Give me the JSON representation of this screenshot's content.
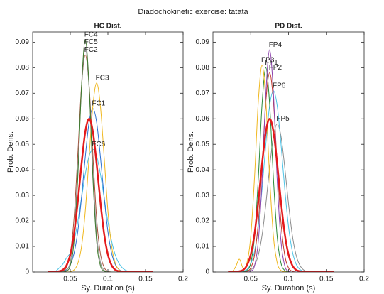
{
  "title": "Diadochokinetic exercise: tatata",
  "chart_data": [
    {
      "type": "line",
      "title": "HC Dist.",
      "xlabel": "Sy. Duration (s)",
      "ylabel": "Prob. Dens.",
      "xlim": [
        0,
        0.2
      ],
      "ylim": [
        0,
        0.094
      ],
      "xticks": [
        0.05,
        0.1,
        0.15,
        0.2
      ],
      "yticks": [
        0,
        0.01,
        0.02,
        0.03,
        0.04,
        0.05,
        0.06,
        0.07,
        0.08,
        0.09
      ],
      "x": [
        0.02,
        0.025,
        0.03,
        0.035,
        0.04,
        0.045,
        0.05,
        0.055,
        0.06,
        0.065,
        0.07,
        0.075,
        0.08,
        0.085,
        0.09,
        0.095,
        0.1,
        0.105,
        0.11,
        0.115,
        0.12,
        0.125,
        0.13,
        0.135,
        0.14,
        0.145,
        0.15,
        0.155,
        0.16
      ],
      "series": [
        {
          "name": "FC6",
          "color": "#4cc3e6",
          "values": [
            0,
            0,
            0.0002,
            0.0015,
            0.003,
            0.0055,
            0.0075,
            0.012,
            0.0197,
            0.0291,
            0.0384,
            0.0454,
            0.048,
            0.0454,
            0.0384,
            0.0291,
            0.0197,
            0.012,
            0.0065,
            0.0032,
            0.0014,
            0.0005,
            0.0002,
            0,
            0,
            0,
            0,
            0,
            0
          ]
        },
        {
          "name": "FC1",
          "color": "#2a6fd0",
          "values": [
            0,
            0,
            0,
            0.0001,
            0.0003,
            0.0009,
            0.0028,
            0.0073,
            0.0159,
            0.0293,
            0.0452,
            0.0587,
            0.064,
            0.0587,
            0.0452,
            0.0293,
            0.0159,
            0.0073,
            0.0028,
            0.0009,
            0.0003,
            0.0001,
            0,
            0,
            0,
            0,
            0,
            0,
            0
          ]
        },
        {
          "name": "FC3",
          "color": "#f0b820",
          "values": [
            0,
            0,
            0,
            0,
            0,
            0,
            0.0001,
            0.0008,
            0.0033,
            0.01,
            0.024,
            0.045,
            0.065,
            0.074,
            0.065,
            0.045,
            0.024,
            0.01,
            0.0033,
            0.0008,
            0.0001,
            0,
            0,
            0,
            0,
            0,
            0,
            0,
            0
          ]
        },
        {
          "name": "FC2",
          "color": "#a5503a",
          "values": [
            0,
            0,
            0,
            0,
            0.0003,
            0.0018,
            0.0072,
            0.021,
            0.046,
            0.073,
            0.085,
            0.073,
            0.046,
            0.021,
            0.0072,
            0.0018,
            0.0003,
            0,
            0,
            0,
            0,
            0,
            0,
            0,
            0,
            0,
            0,
            0,
            0
          ]
        },
        {
          "name": "FC5",
          "color": "#8c8c8c",
          "values": [
            0,
            0,
            0,
            0,
            0.0001,
            0.0007,
            0.0039,
            0.015,
            0.04,
            0.072,
            0.088,
            0.072,
            0.04,
            0.015,
            0.0039,
            0.0007,
            0.0001,
            0,
            0,
            0,
            0,
            0,
            0,
            0,
            0,
            0,
            0,
            0,
            0
          ]
        },
        {
          "name": "FC4",
          "color": "#3d7a2c",
          "values": [
            0,
            0,
            0,
            0,
            0,
            0.0004,
            0.0025,
            0.012,
            0.037,
            0.073,
            0.091,
            0.073,
            0.037,
            0.012,
            0.0025,
            0.0004,
            0,
            0,
            0,
            0,
            0,
            0,
            0,
            0,
            0,
            0,
            0,
            0,
            0
          ]
        },
        {
          "color": "#e41a1c",
          "linewidth": 2.5,
          "values": [
            0,
            0,
            0.0001,
            0.0003,
            0.0008,
            0.0026,
            0.0068,
            0.0149,
            0.0275,
            0.0424,
            0.055,
            0.06,
            0.055,
            0.0424,
            0.0275,
            0.0149,
            0.0068,
            0.0026,
            0.0008,
            0.0003,
            0.0001,
            0,
            0,
            0,
            0,
            0,
            0,
            0,
            0
          ]
        }
      ]
    },
    {
      "type": "line",
      "title": "PD Dist.",
      "xlabel": "Sy. Duration (s)",
      "ylabel": "Prob. Dens.",
      "xlim": [
        0,
        0.2
      ],
      "ylim": [
        0,
        0.094
      ],
      "xticks": [
        0.05,
        0.1,
        0.15,
        0.2
      ],
      "yticks": [
        0,
        0.01,
        0.02,
        0.03,
        0.04,
        0.05,
        0.06,
        0.07,
        0.08,
        0.09
      ],
      "x": [
        0.02,
        0.025,
        0.03,
        0.035,
        0.04,
        0.045,
        0.05,
        0.055,
        0.06,
        0.065,
        0.07,
        0.075,
        0.08,
        0.085,
        0.09,
        0.095,
        0.1,
        0.105,
        0.11,
        0.115,
        0.12,
        0.125,
        0.13,
        0.135,
        0.14,
        0.145,
        0.15,
        0.155,
        0.16
      ],
      "series": [
        {
          "name": "FP5",
          "color": "#8c8c8c",
          "values": [
            0,
            0,
            0,
            0,
            0.0001,
            0.0002,
            0.0008,
            0.0026,
            0.0066,
            0.0144,
            0.0266,
            0.041,
            0.0532,
            0.058,
            0.0532,
            0.041,
            0.0266,
            0.0144,
            0.0066,
            0.0026,
            0.0008,
            0.0002,
            0.0001,
            0,
            0,
            0,
            0,
            0,
            0
          ]
        },
        {
          "name": "FP6",
          "color": "#4cc3e6",
          "values": [
            0,
            0,
            0,
            0.0001,
            0.0003,
            0.001,
            0.0031,
            0.0081,
            0.0177,
            0.0325,
            0.0502,
            0.0651,
            0.071,
            0.0651,
            0.0502,
            0.0325,
            0.0177,
            0.0081,
            0.0031,
            0.001,
            0.0003,
            0.0001,
            0,
            0,
            0,
            0,
            0,
            0,
            0
          ]
        },
        {
          "name": "FP2",
          "color": "#c0392b",
          "values": [
            0,
            0,
            0,
            0,
            0,
            0.0003,
            0.0016,
            0.0066,
            0.0194,
            0.042,
            0.0668,
            0.078,
            0.0668,
            0.042,
            0.0194,
            0.0066,
            0.0016,
            0.0003,
            0,
            0,
            0,
            0,
            0,
            0,
            0,
            0,
            0,
            0,
            0
          ]
        },
        {
          "name": "FP1",
          "color": "#2a8a3a",
          "values": [
            0,
            0,
            0,
            0,
            0.0001,
            0.0006,
            0.0035,
            0.0138,
            0.0366,
            0.0658,
            0.08,
            0.0658,
            0.0366,
            0.0138,
            0.0035,
            0.0006,
            0.0001,
            0,
            0,
            0,
            0,
            0,
            0,
            0,
            0,
            0,
            0,
            0,
            0
          ]
        },
        {
          "name": "FP3",
          "color": "#f0b820",
          "values": [
            0,
            0,
            0.002,
            0.005,
            0.0015,
            0.0036,
            0.0139,
            0.0371,
            0.0667,
            0.081,
            0.0667,
            0.0371,
            0.0139,
            0.0036,
            0.0006,
            0.0001,
            0,
            0,
            0,
            0,
            0,
            0,
            0,
            0,
            0,
            0,
            0,
            0,
            0
          ]
        },
        {
          "name": "FP4",
          "color": "#8e44ad",
          "values": [
            0,
            0,
            0,
            0,
            0,
            0,
            0.0003,
            0.0024,
            0.012,
            0.036,
            0.07,
            0.087,
            0.07,
            0.036,
            0.012,
            0.0024,
            0.0003,
            0,
            0,
            0,
            0,
            0,
            0,
            0,
            0,
            0,
            0,
            0,
            0
          ]
        },
        {
          "color": "#e41a1c",
          "linewidth": 2.5,
          "values": [
            0,
            0,
            0.0001,
            0.0003,
            0.0008,
            0.0026,
            0.0068,
            0.0149,
            0.0275,
            0.0424,
            0.055,
            0.06,
            0.055,
            0.0424,
            0.0275,
            0.0149,
            0.0068,
            0.0026,
            0.0008,
            0.0003,
            0.0001,
            0,
            0,
            0,
            0,
            0,
            0,
            0,
            0
          ]
        }
      ]
    }
  ]
}
